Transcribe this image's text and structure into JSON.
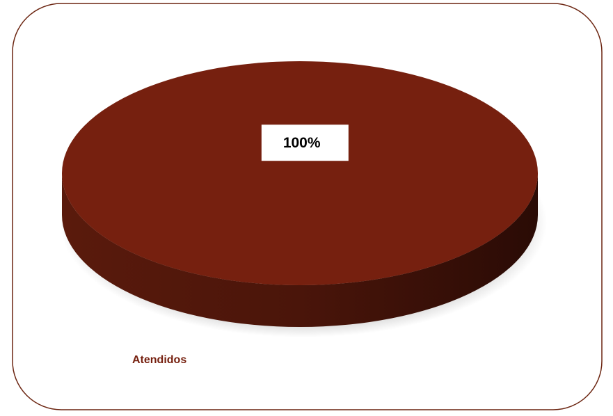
{
  "chart_data": {
    "type": "pie",
    "categories": [
      "Atendidos"
    ],
    "values": [
      100
    ],
    "value_labels": [
      "100%"
    ],
    "colors": [
      "#76200f"
    ],
    "legend": "bottom-left"
  }
}
